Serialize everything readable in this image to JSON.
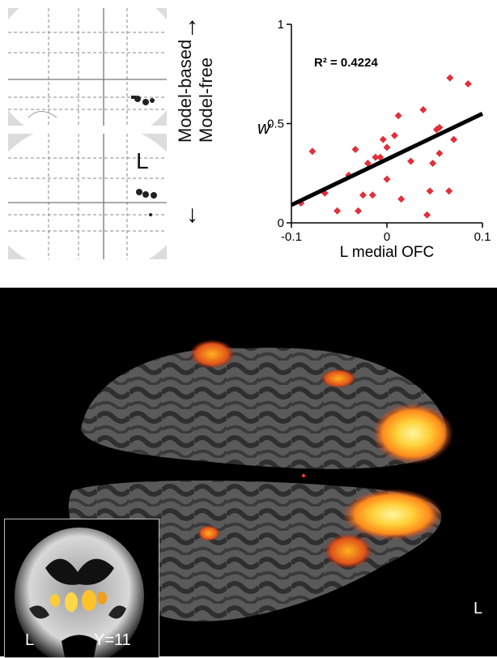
{
  "glass_brain": {
    "hemisphere_label": "L"
  },
  "direction": {
    "model_based": "Model-based",
    "model_free": "Model-free",
    "arrow_up": "↑",
    "arrow_down": "↓"
  },
  "chart_data": {
    "type": "scatter",
    "title": "",
    "xlabel": "L medial OFC",
    "ylabel": "w",
    "xlim": [
      -0.1,
      0.1
    ],
    "ylim": [
      0,
      1
    ],
    "x_ticks": [
      "-0.1",
      "0",
      "0.1"
    ],
    "y_ticks": [
      "0",
      "0.5",
      "1"
    ],
    "annotation": "R² = 0.4224",
    "point_color": "#e0303a",
    "fit_line": {
      "x": [
        -0.1,
        0.1
      ],
      "y": [
        0.09,
        0.55
      ],
      "color": "#000000"
    },
    "points": [
      {
        "x": -0.09,
        "y": 0.1
      },
      {
        "x": -0.078,
        "y": 0.36
      },
      {
        "x": -0.065,
        "y": 0.15
      },
      {
        "x": -0.052,
        "y": 0.06
      },
      {
        "x": -0.04,
        "y": 0.24
      },
      {
        "x": -0.033,
        "y": 0.37
      },
      {
        "x": -0.03,
        "y": 0.06
      },
      {
        "x": -0.025,
        "y": 0.14
      },
      {
        "x": -0.02,
        "y": 0.3
      },
      {
        "x": -0.015,
        "y": 0.14
      },
      {
        "x": -0.012,
        "y": 0.33
      },
      {
        "x": -0.007,
        "y": 0.33
      },
      {
        "x": -0.004,
        "y": 0.42
      },
      {
        "x": 0.0,
        "y": 0.22
      },
      {
        "x": 0.0,
        "y": 0.38
      },
      {
        "x": 0.008,
        "y": 0.44
      },
      {
        "x": 0.012,
        "y": 0.54
      },
      {
        "x": 0.015,
        "y": 0.12
      },
      {
        "x": 0.025,
        "y": 0.31
      },
      {
        "x": 0.038,
        "y": 0.57
      },
      {
        "x": 0.042,
        "y": 0.04
      },
      {
        "x": 0.045,
        "y": 0.16
      },
      {
        "x": 0.048,
        "y": 0.3
      },
      {
        "x": 0.052,
        "y": 0.47
      },
      {
        "x": 0.055,
        "y": 0.48
      },
      {
        "x": 0.055,
        "y": 0.35
      },
      {
        "x": 0.065,
        "y": 0.16
      },
      {
        "x": 0.066,
        "y": 0.73
      },
      {
        "x": 0.07,
        "y": 0.42
      },
      {
        "x": 0.085,
        "y": 0.7
      }
    ]
  },
  "surface": {
    "hemisphere_label": "L",
    "coronal": {
      "side_label": "L",
      "slice_label": "Y=11"
    }
  }
}
